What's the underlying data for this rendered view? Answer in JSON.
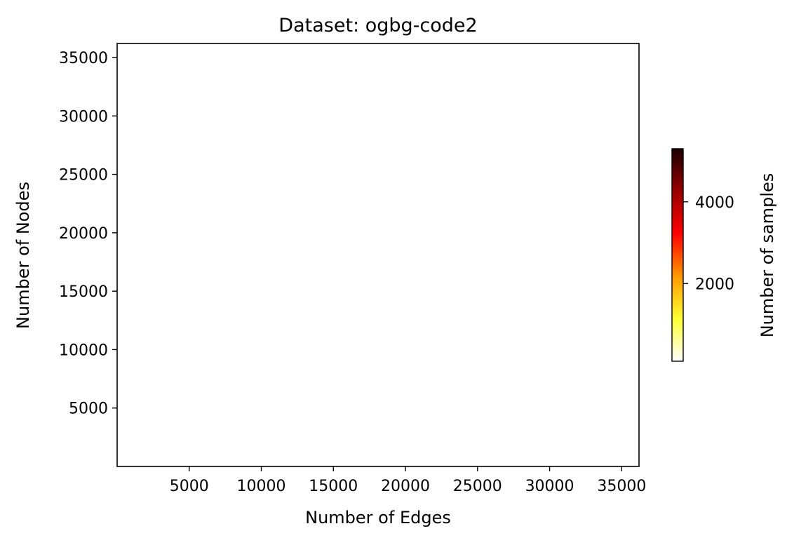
{
  "chart_data": {
    "type": "heatmap",
    "title": "Dataset: ogbg-code2",
    "xlabel": "Number of Edges",
    "ylabel": "Number of Nodes",
    "xlim": [
      0,
      36200
    ],
    "ylim": [
      0,
      36200
    ],
    "xticks": [
      5000,
      10000,
      15000,
      20000,
      25000,
      30000,
      35000
    ],
    "yticks": [
      5000,
      10000,
      15000,
      20000,
      25000,
      30000,
      35000
    ],
    "grid": false,
    "values": [],
    "colorbar": {
      "label": "Number of samples",
      "colormap": "hot_r",
      "range": [
        100,
        5300
      ],
      "ticks": [
        2000,
        4000
      ],
      "colors": [
        "#ffffff",
        "#ffff33",
        "#ff9900",
        "#ff0000",
        "#990000",
        "#1a0000"
      ]
    },
    "colors": {
      "background": "#ffffff",
      "axis": "#000000"
    }
  }
}
